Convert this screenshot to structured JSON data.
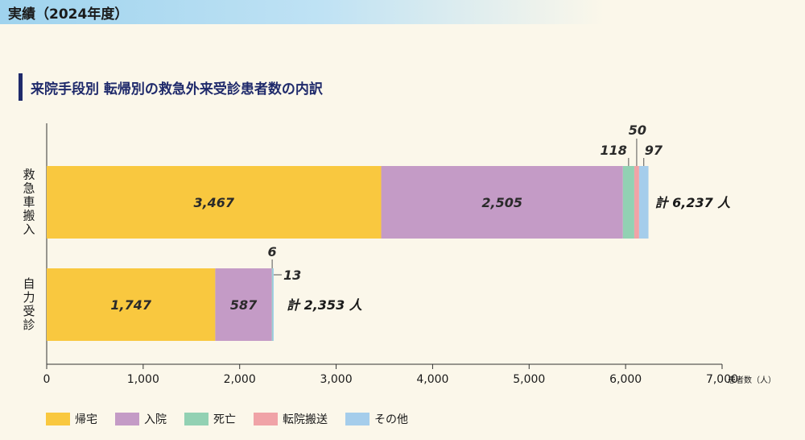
{
  "header": {
    "title": "実績（2024年度）"
  },
  "section": {
    "title": "来院手段別 転帰別の救急外来受診患者数の内訳"
  },
  "chart_data": {
    "type": "bar",
    "orientation": "horizontal",
    "stacked": true,
    "categories": [
      "救急車搬入",
      "自力受診"
    ],
    "series": [
      {
        "name": "帰宅",
        "color": "#f9c83f",
        "values": [
          3467,
          1747
        ],
        "labels": [
          "3,467",
          "1,747"
        ]
      },
      {
        "name": "入院",
        "color": "#c49bc6",
        "values": [
          2505,
          587
        ],
        "labels": [
          "2,505",
          "587"
        ]
      },
      {
        "name": "死亡",
        "color": "#92d1b3",
        "values": [
          118,
          6
        ],
        "labels": [
          "118",
          "6"
        ]
      },
      {
        "name": "転院搬送",
        "color": "#f0a3a7",
        "values": [
          50,
          0
        ],
        "labels": [
          "50",
          ""
        ]
      },
      {
        "name": "その他",
        "color": "#a5cdeb",
        "values": [
          97,
          13
        ],
        "labels": [
          "97",
          "13"
        ]
      }
    ],
    "totals": [
      "計 6,237 人",
      "計 2,353 人"
    ],
    "xlim": [
      0,
      7000
    ],
    "xticks": [
      0,
      1000,
      2000,
      3000,
      4000,
      5000,
      6000,
      7000
    ],
    "xtick_labels": [
      "0",
      "1,000",
      "2,000",
      "3,000",
      "4,000",
      "5,000",
      "6,000",
      "7,000"
    ],
    "xlabel": "患者数（人）",
    "grid": false,
    "legend_position": "bottom-left"
  }
}
